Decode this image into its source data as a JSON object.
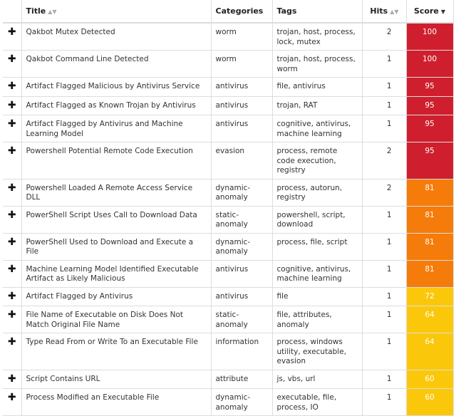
{
  "columns": {
    "title": "Title",
    "categories": "Categories",
    "tags": "Tags",
    "hits": "Hits",
    "score": "Score",
    "title_sort_icon": "sort-both-icon",
    "hits_sort_icon": "sort-both-icon",
    "score_sort_icon": "sort-desc-icon"
  },
  "expand_glyph": "✚",
  "colors": {
    "critical": "#cf1f2e",
    "high": "#f57c0a",
    "medium": "#fbc70a"
  },
  "rows": [
    {
      "title": "Qakbot Mutex Detected",
      "category": "worm",
      "tags": "trojan, host, process, lock, mutex",
      "hits": "2",
      "score": "100",
      "level": "critical"
    },
    {
      "title": "Qakbot Command Line Detected",
      "category": "worm",
      "tags": "trojan, host, process, worm",
      "hits": "1",
      "score": "100",
      "level": "critical"
    },
    {
      "title": "Artifact Flagged Malicious by Antivirus Service",
      "category": "antivirus",
      "tags": "file, antivirus",
      "hits": "1",
      "score": "95",
      "level": "critical"
    },
    {
      "title": "Artifact Flagged as Known Trojan by Antivirus",
      "category": "antivirus",
      "tags": "trojan, RAT",
      "hits": "1",
      "score": "95",
      "level": "critical"
    },
    {
      "title": "Artifact Flagged by Antivirus and Machine Learning Model",
      "category": "antivirus",
      "tags": "cognitive, antivirus, machine learning",
      "hits": "1",
      "score": "95",
      "level": "critical"
    },
    {
      "title": "Powershell Potential Remote Code Execution",
      "category": "evasion",
      "tags": "process, remote code execution, registry",
      "hits": "2",
      "score": "95",
      "level": "critical"
    },
    {
      "title": "Powershell Loaded A Remote Access Service DLL",
      "category": "dynamic-anomaly",
      "tags": "process, autorun, registry",
      "hits": "2",
      "score": "81",
      "level": "high"
    },
    {
      "title": "PowerShell Script Uses Call to Download Data",
      "category": "static-anomaly",
      "tags": "powershell, script, download",
      "hits": "1",
      "score": "81",
      "level": "high"
    },
    {
      "title": "PowerShell Used to Download and Execute a File",
      "category": "dynamic-anomaly",
      "tags": "process, file, script",
      "hits": "1",
      "score": "81",
      "level": "high"
    },
    {
      "title": "Machine Learning Model Identified Executable Artifact as Likely Malicious",
      "category": "antivirus",
      "tags": "cognitive, antivirus, machine learning",
      "hits": "1",
      "score": "81",
      "level": "high"
    },
    {
      "title": "Artifact Flagged by Antivirus",
      "category": "antivirus",
      "tags": "file",
      "hits": "1",
      "score": "72",
      "level": "medium"
    },
    {
      "title": "File Name of Executable on Disk Does Not Match Original File Name",
      "category": "static-anomaly",
      "tags": "file, attributes, anomaly",
      "hits": "1",
      "score": "64",
      "level": "medium"
    },
    {
      "title": "Type Read From or Write To an Executable File",
      "category": "information",
      "tags": "process, windows utility, executable, evasion",
      "hits": "1",
      "score": "64",
      "level": "medium"
    },
    {
      "title": "Script Contains URL",
      "category": "attribute",
      "tags": "js, vbs, url",
      "hits": "1",
      "score": "60",
      "level": "medium"
    },
    {
      "title": "Process Modified an Executable File",
      "category": "dynamic-anomaly",
      "tags": "executable, file, process, IO",
      "hits": "1",
      "score": "60",
      "level": "medium"
    }
  ]
}
